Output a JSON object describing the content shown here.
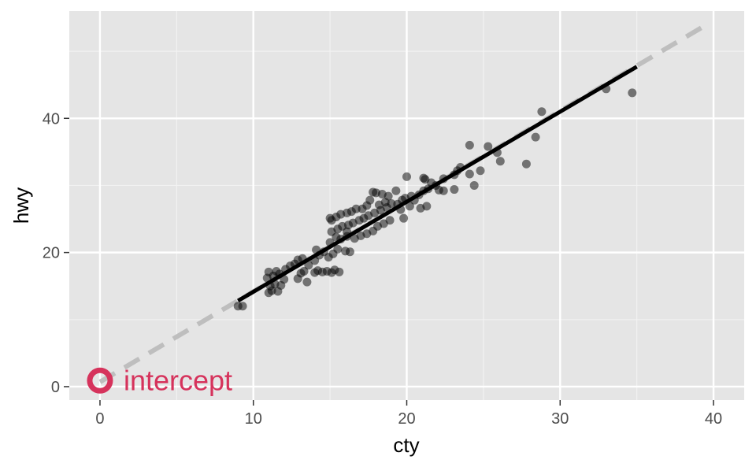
{
  "chart_data": {
    "type": "scatter",
    "title": "",
    "xlabel": "cty",
    "ylabel": "hwy",
    "xlim": [
      -2,
      42
    ],
    "ylim": [
      -2,
      56
    ],
    "x_ticks": [
      0,
      10,
      20,
      30,
      40
    ],
    "y_ticks": [
      0,
      20,
      40
    ],
    "x_tick_labels": [
      "0",
      "10",
      "20",
      "30",
      "40"
    ],
    "y_tick_labels": [
      "0",
      "20",
      "40"
    ],
    "grid": true,
    "legend": "none",
    "points": [
      [
        9,
        12
      ],
      [
        9.3,
        12
      ],
      [
        11,
        14
      ],
      [
        11.2,
        14.3
      ],
      [
        11.6,
        14.2
      ],
      [
        11.1,
        15
      ],
      [
        11.4,
        15.3
      ],
      [
        11.8,
        15.1
      ],
      [
        10.9,
        16.2
      ],
      [
        11.3,
        16.5
      ],
      [
        11.7,
        16.8
      ],
      [
        11,
        17.1
      ],
      [
        11.5,
        17.2
      ],
      [
        12,
        16
      ],
      [
        12.1,
        17.5
      ],
      [
        12.4,
        18
      ],
      [
        12.7,
        18.3
      ],
      [
        12.9,
        18.9
      ],
      [
        13.2,
        19.1
      ],
      [
        12.9,
        16.1
      ],
      [
        13.5,
        15.6
      ],
      [
        13.1,
        16.9
      ],
      [
        13.3,
        17.2
      ],
      [
        13.6,
        18.1
      ],
      [
        14,
        17
      ],
      [
        14.2,
        17.3
      ],
      [
        14.5,
        17.1
      ],
      [
        14.8,
        17.2
      ],
      [
        15.1,
        17
      ],
      [
        15.3,
        17.4
      ],
      [
        15.6,
        17.1
      ],
      [
        14,
        18.8
      ],
      [
        14.3,
        19.6
      ],
      [
        14.6,
        20.1
      ],
      [
        14.1,
        20.4
      ],
      [
        14.9,
        19.3
      ],
      [
        15.2,
        19.8
      ],
      [
        15.5,
        20.5
      ],
      [
        16,
        20.2
      ],
      [
        16.3,
        20.1
      ],
      [
        15,
        21.5
      ],
      [
        15.4,
        22.3
      ],
      [
        15.7,
        22
      ],
      [
        16.1,
        22.4
      ],
      [
        15.1,
        23.1
      ],
      [
        15.5,
        23.5
      ],
      [
        15.8,
        23.9
      ],
      [
        16.2,
        24.1
      ],
      [
        16.5,
        24.4
      ],
      [
        16.9,
        24.8
      ],
      [
        17.2,
        25.1
      ],
      [
        15.1,
        24.8
      ],
      [
        15.4,
        25.3
      ],
      [
        15.7,
        25.7
      ],
      [
        16.1,
        25.9
      ],
      [
        16.4,
        26.1
      ],
      [
        16.7,
        26.5
      ],
      [
        15,
        25.1
      ],
      [
        16.1,
        23.1
      ],
      [
        16.6,
        22.1
      ],
      [
        17,
        22.5
      ],
      [
        17.4,
        22.8
      ],
      [
        17.8,
        23.2
      ],
      [
        18.1,
        23.9
      ],
      [
        18.5,
        24.3
      ],
      [
        18.9,
        24.8
      ],
      [
        17.5,
        25.5
      ],
      [
        17.9,
        25.9
      ],
      [
        18.3,
        26.3
      ],
      [
        18.7,
        26.7
      ],
      [
        17.1,
        26.5
      ],
      [
        17.4,
        27
      ],
      [
        18.2,
        27.1
      ],
      [
        18.6,
        27.5
      ],
      [
        19,
        27.3
      ],
      [
        19.4,
        27.2
      ],
      [
        17.6,
        27.8
      ],
      [
        18,
        28.9
      ],
      [
        18.4,
        28.7
      ],
      [
        17.8,
        29
      ],
      [
        18.8,
        28.4
      ],
      [
        19.3,
        29.2
      ],
      [
        19.7,
        27.8
      ],
      [
        19.9,
        28.1
      ],
      [
        20.3,
        28.4
      ],
      [
        19.8,
        25.1
      ],
      [
        19.6,
        26.4
      ],
      [
        20.2,
        26.9
      ],
      [
        20.5,
        27.8
      ],
      [
        20.8,
        28.6
      ],
      [
        21.1,
        29.2
      ],
      [
        21.4,
        29.5
      ],
      [
        21.2,
        30.9
      ],
      [
        21.6,
        30.4
      ],
      [
        21.9,
        30
      ],
      [
        22.1,
        29.3
      ],
      [
        21.1,
        31.1
      ],
      [
        20,
        31.3
      ],
      [
        20.9,
        26.6
      ],
      [
        21.3,
        26.9
      ],
      [
        22.4,
        29.2
      ],
      [
        22.4,
        31
      ],
      [
        23.1,
        31.6
      ],
      [
        23.3,
        32.2
      ],
      [
        23.5,
        32.7
      ],
      [
        23.1,
        29.4
      ],
      [
        24.1,
        31.7
      ],
      [
        24.4,
        30
      ],
      [
        24.1,
        36
      ],
      [
        24.8,
        32.2
      ],
      [
        25.3,
        35.8
      ],
      [
        25.9,
        34.9
      ],
      [
        26.1,
        33.6
      ],
      [
        27.8,
        33.2
      ],
      [
        28.4,
        37.2
      ],
      [
        28.8,
        41
      ],
      [
        33,
        44.4
      ],
      [
        34.7,
        43.8
      ]
    ],
    "fit_line": {
      "x": [
        9,
        35
      ],
      "y": [
        12.8,
        47.7
      ],
      "color": "#000000"
    },
    "reference_line": {
      "x": [
        0,
        39.5
      ],
      "y": [
        0.7,
        53.9
      ],
      "color": "#bebebe",
      "style": "dashed"
    },
    "annotation": {
      "text": "intercept",
      "x": 0,
      "y": 0.9,
      "color": "#d6335c",
      "marker": "hollow-circle"
    },
    "point_color": "#000000",
    "point_alpha": 0.5,
    "panel_background": "#e5e5e5"
  }
}
